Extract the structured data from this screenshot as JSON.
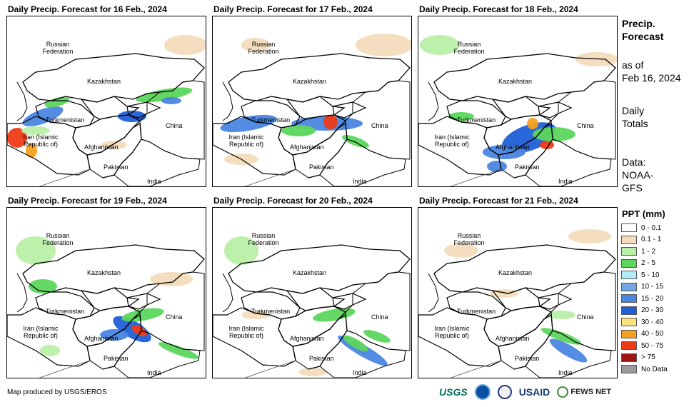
{
  "panels": [
    {
      "title": "Daily Precip. Forecast for 16 Feb., 2024"
    },
    {
      "title": "Daily Precip. Forecast for 17 Feb., 2024"
    },
    {
      "title": "Daily Precip. Forecast for 18 Feb., 2024"
    },
    {
      "title": "Daily Precip. Forecast for 19 Feb., 2024"
    },
    {
      "title": "Daily Precip. Forecast for 20 Feb., 2024"
    },
    {
      "title": "Daily Precip. Forecast for 21 Feb., 2024"
    }
  ],
  "countries": {
    "russia": "Russian Federation",
    "kazakhstan": "Kazakhstan",
    "turkmenistan": "Turkmenistan",
    "iran": "Iran (Islamic Republic of)",
    "afghanistan": "Afghanistan",
    "pakistan": "Pakistan",
    "china": "China",
    "india": "India"
  },
  "sidebar": {
    "heading_line1": "Precip.",
    "heading_line2": "Forecast",
    "asof_line1": "as of",
    "asof_line2": "Feb 16, 2024",
    "totals_line1": "Daily",
    "totals_line2": "Totals",
    "data_line1": "Data:",
    "data_line2": "NOAA-",
    "data_line3": "GFS"
  },
  "legend": {
    "title": "PPT (mm)",
    "items": [
      {
        "label": "0 - 0.1",
        "color": "#ffffff"
      },
      {
        "label": "0.1 - 1",
        "color": "#f3dcbc"
      },
      {
        "label": "1 - 2",
        "color": "#b9efa7"
      },
      {
        "label": "2 - 5",
        "color": "#5cd65c"
      },
      {
        "label": "5 - 10",
        "color": "#b3ecf7"
      },
      {
        "label": "10 - 15",
        "color": "#74a9e8"
      },
      {
        "label": "15 - 20",
        "color": "#4a86e0"
      },
      {
        "label": "20 - 30",
        "color": "#1f5fd6"
      },
      {
        "label": "30 - 40",
        "color": "#fbe27a"
      },
      {
        "label": "40 - 50",
        "color": "#f5a021"
      },
      {
        "label": "50 - 75",
        "color": "#ee3b17"
      },
      {
        "label": "> 75",
        "color": "#a11414"
      },
      {
        "label": "No Data",
        "color": "#9b9b9b"
      }
    ]
  },
  "footer": {
    "credit": "Map produced by USGS/EROS",
    "logo_usgs": "USGS",
    "logo_usaid": "USAID",
    "logo_fews": "FEWS NET"
  }
}
